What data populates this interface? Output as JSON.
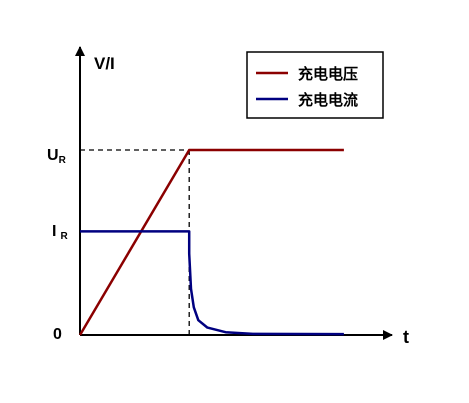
{
  "chart_data": {
    "type": "line",
    "ylabel": "V/I",
    "xlabel": "t",
    "origin_label": "0",
    "y_ticks": [
      {
        "main": "U",
        "sub": "R",
        "value": 1.0
      },
      {
        "main": "I",
        "sub": "R",
        "value": 0.56
      }
    ],
    "xlim": [
      0,
      1.65
    ],
    "ylim": [
      0,
      1.0
    ],
    "switch_x": 0.6,
    "legend_position": "top-right",
    "series": [
      {
        "name": "充电电压",
        "color": "#8b0000",
        "points": [
          [
            0,
            0
          ],
          [
            0.6,
            1.0
          ],
          [
            1.45,
            1.0
          ]
        ]
      },
      {
        "name": "充电电流",
        "color": "#000080",
        "points": [
          [
            0,
            0.56
          ],
          [
            0.6,
            0.56
          ],
          [
            0.6,
            0.44
          ],
          [
            0.61,
            0.25
          ],
          [
            0.625,
            0.15
          ],
          [
            0.65,
            0.08
          ],
          [
            0.7,
            0.04
          ],
          [
            0.8,
            0.015
          ],
          [
            0.95,
            0.006
          ],
          [
            1.45,
            0.005
          ]
        ]
      }
    ]
  }
}
